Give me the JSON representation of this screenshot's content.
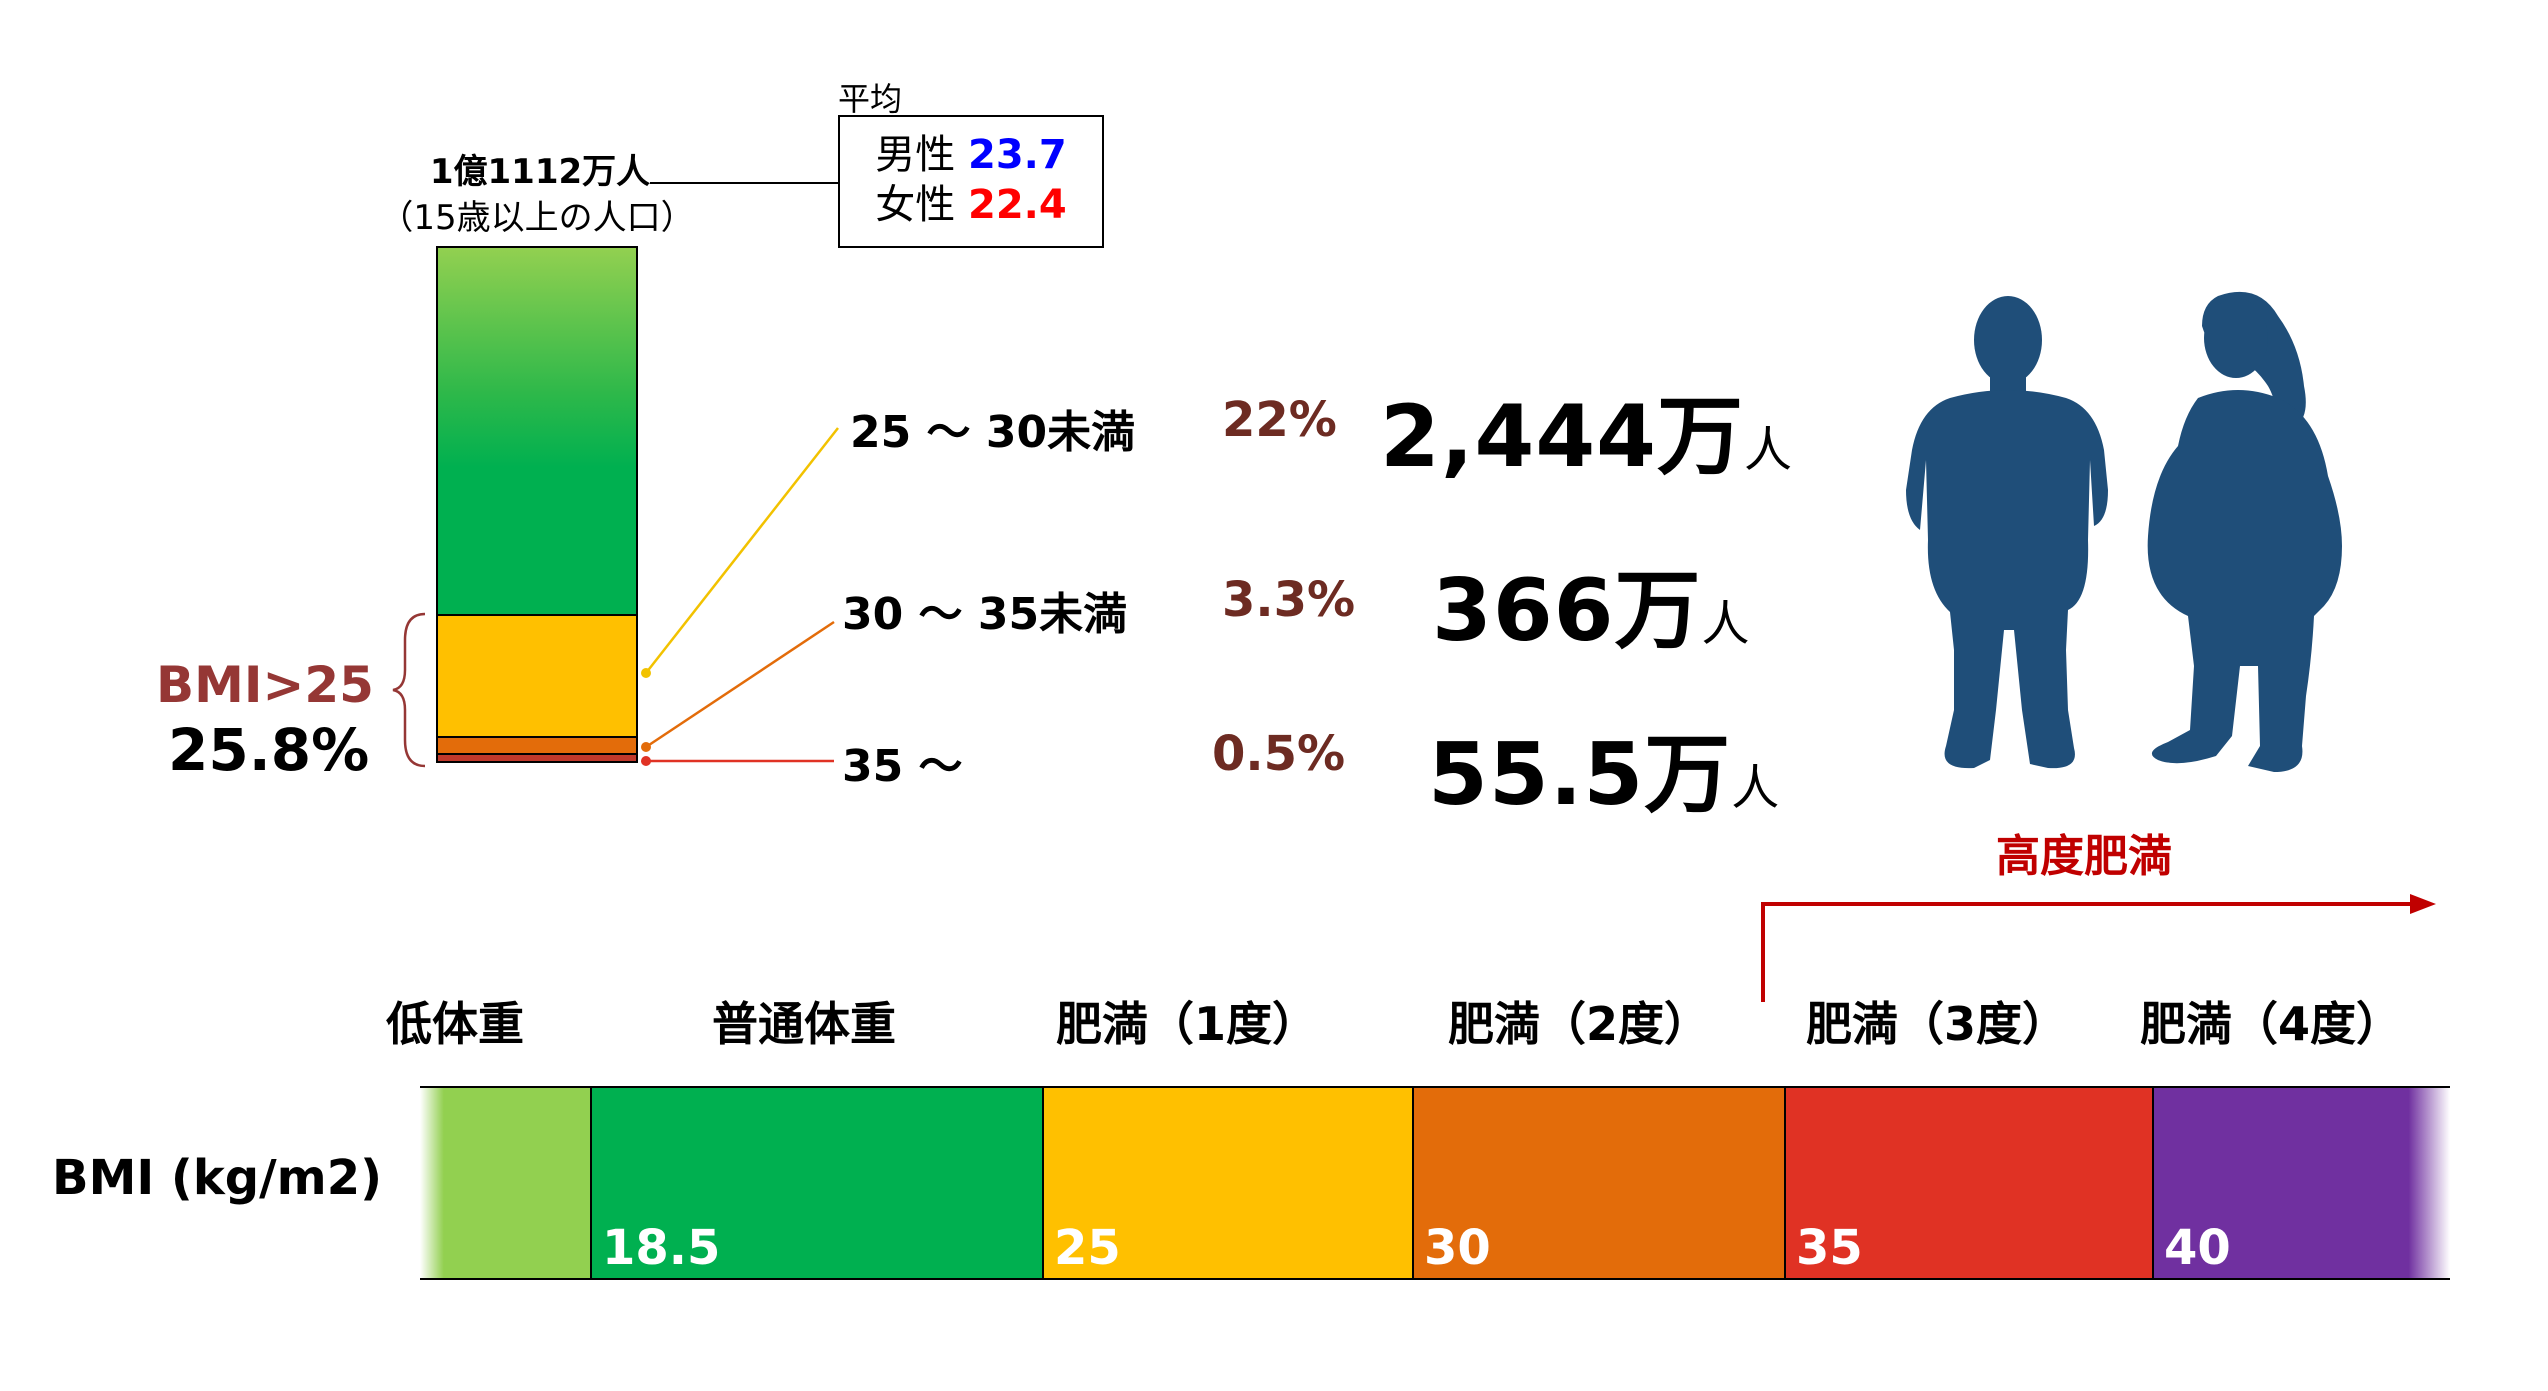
{
  "population": {
    "total": "1億1112万人",
    "note": "（15歳以上の人口）"
  },
  "average": {
    "title": "平均",
    "male_label": "男性",
    "male_value": "23.7",
    "female_label": "女性",
    "female_value": "22.4"
  },
  "bmi_over_25": {
    "label": "BMI>25",
    "percent": "25.8%"
  },
  "categories": [
    {
      "range": "25 ～ 30未満",
      "percent": "22%",
      "count": "2,444万",
      "unit": "人"
    },
    {
      "range": "30 ～ 35未満",
      "percent": "3.3%",
      "count": "366万",
      "unit": "人"
    },
    {
      "range": "35 ～",
      "percent": "0.5%",
      "count": "55.5万",
      "unit": "人"
    }
  ],
  "severe_obesity_label": "高度肥満",
  "scale": {
    "axis_label": "BMI (kg/m2)",
    "headings": [
      "低体重",
      "普通体重",
      "肥満（1度）",
      "肥満（2度）",
      "肥満（3度）",
      "肥満（4度）"
    ],
    "values": [
      "",
      "18.5",
      "25",
      "30",
      "35",
      "40"
    ]
  },
  "colors": {
    "underweight": "#92d050",
    "normal": "#00b050",
    "obese1": "#ffc000",
    "obese2": "#e36c0a",
    "obese3": "#e03224",
    "obese4": "#7030a0",
    "silhouette": "#1f4e79",
    "accent_red": "#c00000",
    "male": "#0000ff",
    "female": "#ff0000",
    "bmi_label": "#953735"
  },
  "icons": [
    "male-silhouette-icon",
    "female-silhouette-icon",
    "arrow-right-icon"
  ]
}
